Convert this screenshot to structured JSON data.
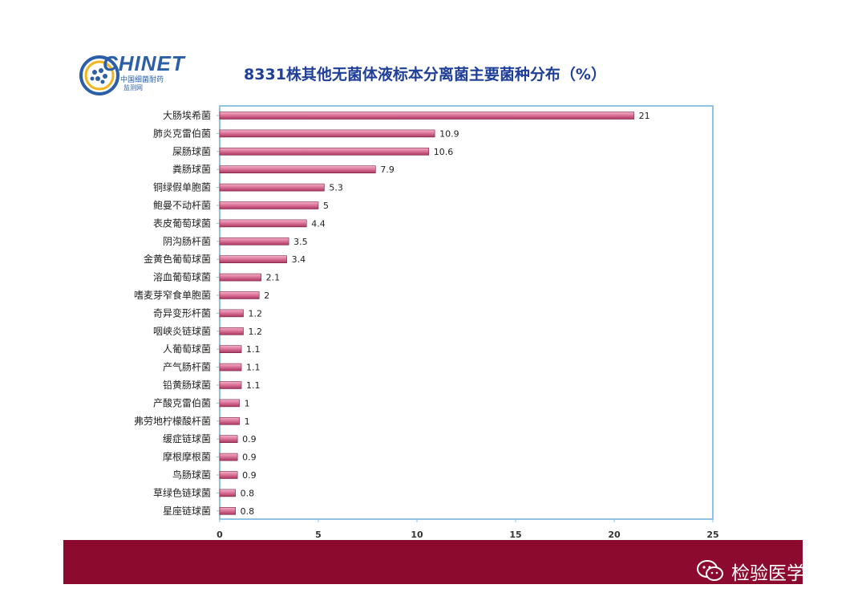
{
  "logo": {
    "word": "CHINET",
    "sub1": "中国细菌耐药",
    "sub2": "监测网"
  },
  "title": "8331株其他无菌体液标本分离菌主要菌种分布（%）",
  "watermark": {
    "text": "检验医学网",
    "icon": "wechat-icon"
  },
  "colors": {
    "bar": "#d96f95",
    "title": "#1f3f99",
    "footer": "#8b0a2e",
    "plot_border": "#8fc3e4",
    "logo": "#2b5fa8"
  },
  "chart_data": {
    "type": "bar",
    "orientation": "horizontal",
    "title": "8331株其他无菌体液标本分离菌主要菌种分布（%）",
    "categories": [
      "大肠埃希菌",
      "肺炎克雷伯菌",
      "屎肠球菌",
      "粪肠球菌",
      "铜绿假单胞菌",
      "鲍曼不动杆菌",
      "表皮葡萄球菌",
      "阴沟肠杆菌",
      "金黄色葡萄球菌",
      "溶血葡萄球菌",
      "嗜麦芽窄食单胞菌",
      "奇异变形杆菌",
      "咽峡炎链球菌",
      "人葡萄球菌",
      "产气肠杆菌",
      "铅黄肠球菌",
      "产酸克雷伯菌",
      "弗劳地柠檬酸杆菌",
      "缓症链球菌",
      "摩根摩根菌",
      "鸟肠球菌",
      "草绿色链球菌",
      "星座链球菌"
    ],
    "values": [
      21,
      10.9,
      10.6,
      7.9,
      5.3,
      5,
      4.4,
      3.5,
      3.4,
      2.1,
      2,
      1.2,
      1.2,
      1.1,
      1.1,
      1.1,
      1,
      1,
      0.9,
      0.9,
      0.9,
      0.8,
      0.8
    ],
    "value_labels": [
      "21",
      "10.9",
      "10.6",
      "7.9",
      "5.3",
      "5",
      "4.4",
      "3.5",
      "3.4",
      "2.1",
      "2",
      "1.2",
      "1.2",
      "1.1",
      "1.1",
      "1.1",
      "1",
      "1",
      "0.9",
      "0.9",
      "0.9",
      "0.8",
      "0.8"
    ],
    "xlim": [
      0,
      25
    ],
    "xticks": [
      0,
      5,
      10,
      15,
      20,
      25
    ],
    "xlabel": "",
    "ylabel": "",
    "grid": false,
    "legend": "none"
  }
}
